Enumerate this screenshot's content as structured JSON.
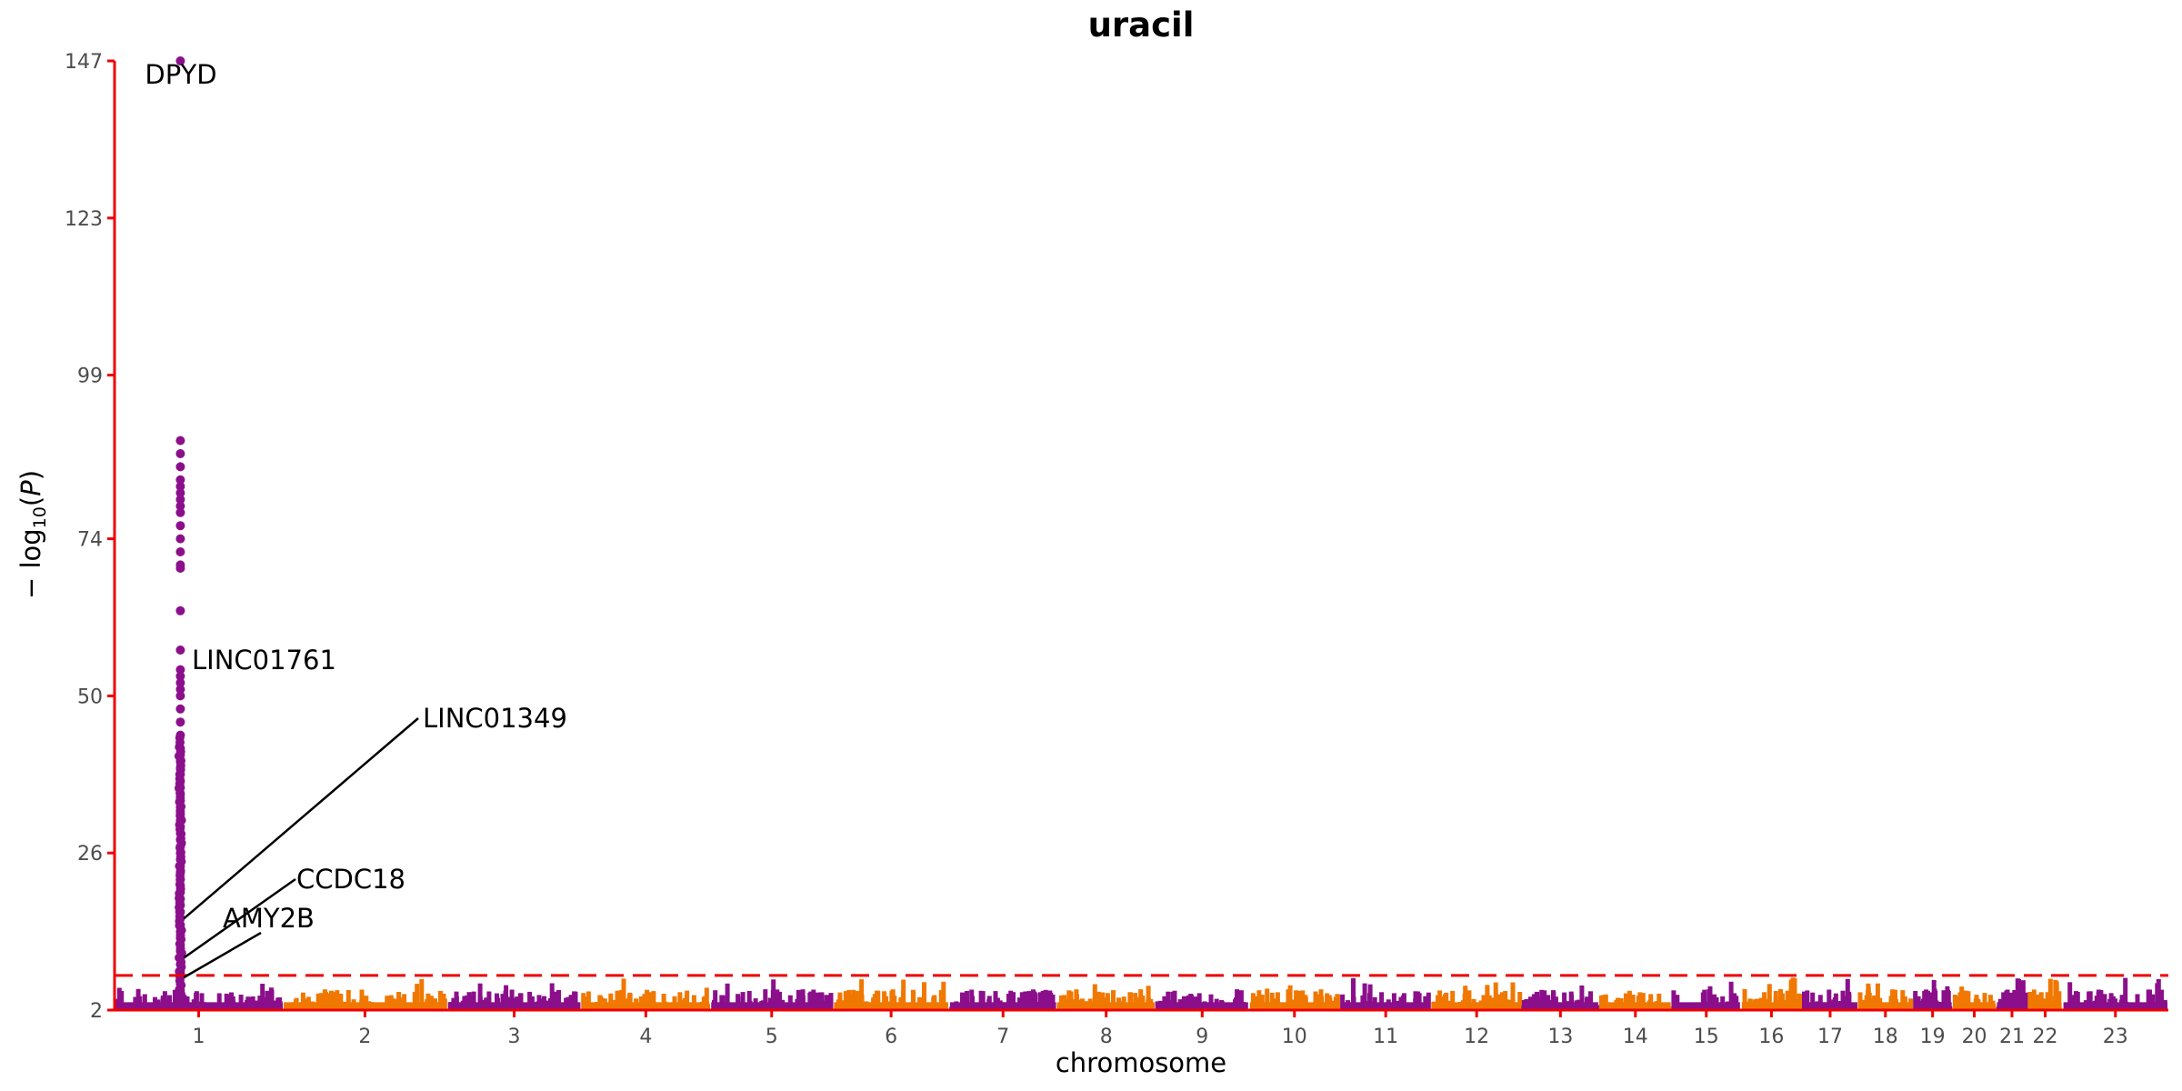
{
  "chart_data": {
    "type": "scatter",
    "subtype": "manhattan",
    "title": "uracil",
    "xlabel": "chromosome",
    "ylabel": "−log10(P)",
    "ylabel_parts": {
      "pre": "− log",
      "sub": "10",
      "post": "(",
      "var": "P",
      "close": ")"
    },
    "yticks": [
      2,
      26,
      50,
      74,
      99,
      123,
      147
    ],
    "ylim": [
      2,
      147
    ],
    "significance_threshold": 7.3,
    "threshold_line": {
      "color": "#ee0000",
      "style": "dashed"
    },
    "axis_color": "#ee0000",
    "series_colors": [
      "#8b0f8b",
      "#f07800"
    ],
    "chromosomes": [
      {
        "label": "1",
        "length": 248
      },
      {
        "label": "2",
        "length": 242
      },
      {
        "label": "3",
        "length": 198
      },
      {
        "label": "4",
        "length": 190
      },
      {
        "label": "5",
        "length": 181
      },
      {
        "label": "6",
        "length": 171
      },
      {
        "label": "7",
        "length": 159
      },
      {
        "label": "8",
        "length": 145
      },
      {
        "label": "9",
        "length": 138
      },
      {
        "label": "10",
        "length": 134
      },
      {
        "label": "11",
        "length": 135
      },
      {
        "label": "12",
        "length": 133
      },
      {
        "label": "13",
        "length": 114
      },
      {
        "label": "14",
        "length": 107
      },
      {
        "label": "15",
        "length": 102
      },
      {
        "label": "16",
        "length": 90
      },
      {
        "label": "17",
        "length": 83
      },
      {
        "label": "18",
        "length": 80
      },
      {
        "label": "19",
        "length": 59
      },
      {
        "label": "20",
        "length": 64
      },
      {
        "label": "21",
        "length": 47
      },
      {
        "label": "22",
        "length": 51
      },
      {
        "label": "23",
        "length": 156
      }
    ],
    "peak": {
      "chromosome": "1",
      "position": 97,
      "values": [
        147,
        89,
        87,
        85,
        83,
        82,
        81,
        80,
        79,
        78,
        76,
        74,
        72,
        70,
        69.5,
        63,
        57,
        54,
        53,
        52,
        51,
        50,
        48,
        46,
        44,
        42,
        41,
        40,
        39,
        38,
        37,
        36,
        35,
        34,
        33,
        32,
        31,
        30,
        29,
        28,
        27,
        26,
        25,
        24,
        23,
        22,
        21,
        20,
        19,
        18,
        17,
        16,
        15,
        14,
        13,
        12,
        11,
        10,
        9,
        8,
        7.5,
        7,
        6,
        5,
        4
      ]
    },
    "annotations": [
      {
        "text": "DPYD",
        "chromosome": "1",
        "position": 97,
        "y": 147
      },
      {
        "text": "LINC01761",
        "chromosome": "1",
        "position": 97,
        "y": 54
      },
      {
        "text": "LINC01349",
        "chromosome": "1",
        "position": 97,
        "y": 16
      },
      {
        "text": "CCDC18",
        "chromosome": "1",
        "position": 97,
        "y": 10
      },
      {
        "text": "AMY2B",
        "chromosome": "1",
        "position": 97,
        "y": 7
      }
    ]
  }
}
